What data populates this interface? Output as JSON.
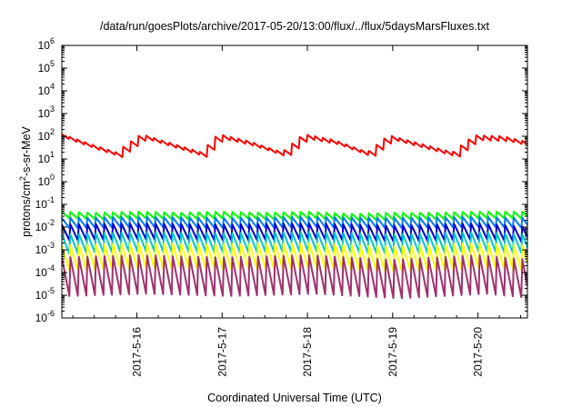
{
  "chart_data": {
    "type": "line",
    "title": "/data/run/goesPlots/archive/2017-05-20/13:00/flux/../flux/5daysMarsFluxes.txt",
    "xlabel": "Coordinated Universal Time (UTC)",
    "ylabel_main": "protons/cm",
    "ylabel_sup": "2",
    "ylabel_tail": "-s-sr-MeV",
    "yscale": "log",
    "ylim_exp": [
      -6,
      6
    ],
    "y_tick_base": "10",
    "y_tick_exponents": [
      "-6",
      "-5",
      "-4",
      "-3",
      "-2",
      "-1",
      "0",
      "1",
      "2",
      "3",
      "4",
      "5",
      "6"
    ],
    "xlim_days": [
      15.12,
      20.58
    ],
    "x_ticks": [
      {
        "day": 16,
        "label": "2017-5-16"
      },
      {
        "day": 17,
        "label": "2017-5-17"
      },
      {
        "day": 18,
        "label": "2017-5-18"
      },
      {
        "day": 19,
        "label": "2017-5-19"
      },
      {
        "day": 20,
        "label": "2017-5-20"
      }
    ],
    "grid": false,
    "legend": "none",
    "series": [
      {
        "color": "#ff0000",
        "anchors": [
          [
            15.12,
            2.0
          ],
          [
            15.5,
            1.5
          ],
          [
            15.75,
            1.2
          ],
          [
            16.05,
            2.0
          ],
          [
            16.35,
            1.65
          ],
          [
            16.75,
            1.2
          ],
          [
            16.95,
            2.0
          ],
          [
            17.3,
            1.7
          ],
          [
            17.7,
            1.2
          ],
          [
            17.95,
            2.0
          ],
          [
            18.3,
            1.75
          ],
          [
            18.7,
            1.2
          ],
          [
            18.95,
            1.95
          ],
          [
            19.3,
            1.6
          ],
          [
            19.7,
            1.2
          ],
          [
            19.95,
            1.95
          ],
          [
            20.3,
            1.9
          ],
          [
            20.58,
            1.65
          ]
        ],
        "amp": 0.22,
        "period": 0.09
      },
      {
        "color": "#00ff00",
        "anchors": [
          [
            15.12,
            -1.45
          ],
          [
            15.5,
            -1.5
          ],
          [
            16.0,
            -1.45
          ],
          [
            16.5,
            -1.5
          ],
          [
            17.0,
            -1.45
          ],
          [
            17.5,
            -1.5
          ],
          [
            18.0,
            -1.45
          ],
          [
            18.5,
            -1.55
          ],
          [
            19.0,
            -1.5
          ],
          [
            19.5,
            -1.5
          ],
          [
            20.0,
            -1.45
          ],
          [
            20.58,
            -1.45
          ]
        ],
        "amp": 0.3,
        "period": 0.1
      },
      {
        "color": "#0077ff",
        "anchors": [
          [
            15.12,
            -1.8
          ],
          [
            16.0,
            -1.75
          ],
          [
            17.0,
            -1.8
          ],
          [
            18.0,
            -1.75
          ],
          [
            19.0,
            -1.8
          ],
          [
            20.0,
            -1.75
          ],
          [
            20.58,
            -1.8
          ]
        ],
        "amp": 0.45,
        "period": 0.1
      },
      {
        "color": "#0000cc",
        "anchors": [
          [
            15.12,
            -2.2
          ],
          [
            16.0,
            -2.15
          ],
          [
            17.0,
            -2.2
          ],
          [
            18.0,
            -2.15
          ],
          [
            19.0,
            -2.25
          ],
          [
            20.0,
            -2.15
          ],
          [
            20.58,
            -2.3
          ]
        ],
        "amp": 0.7,
        "period": 0.1
      },
      {
        "color": "#00c8c8",
        "anchors": [
          [
            15.12,
            -2.7
          ],
          [
            16.0,
            -2.6
          ],
          [
            17.0,
            -2.65
          ],
          [
            18.0,
            -2.6
          ],
          [
            19.0,
            -2.7
          ],
          [
            20.0,
            -2.6
          ],
          [
            20.58,
            -2.7
          ]
        ],
        "amp": 0.85,
        "period": 0.1
      },
      {
        "color": "#ffff00",
        "anchors": [
          [
            15.12,
            -3.3
          ],
          [
            16.0,
            -3.2
          ],
          [
            17.0,
            -3.25
          ],
          [
            18.0,
            -3.2
          ],
          [
            19.0,
            -3.35
          ],
          [
            20.0,
            -3.2
          ],
          [
            20.58,
            -3.3
          ]
        ],
        "amp": 1.1,
        "period": 0.1
      },
      {
        "color": "#a0306e",
        "anchors": [
          [
            15.12,
            -4.1
          ],
          [
            16.0,
            -4.0
          ],
          [
            17.0,
            -4.1
          ],
          [
            18.0,
            -4.0
          ],
          [
            19.0,
            -4.2
          ],
          [
            20.0,
            -4.0
          ],
          [
            20.58,
            -4.2
          ]
        ],
        "amp": 1.7,
        "period": 0.1
      }
    ]
  }
}
